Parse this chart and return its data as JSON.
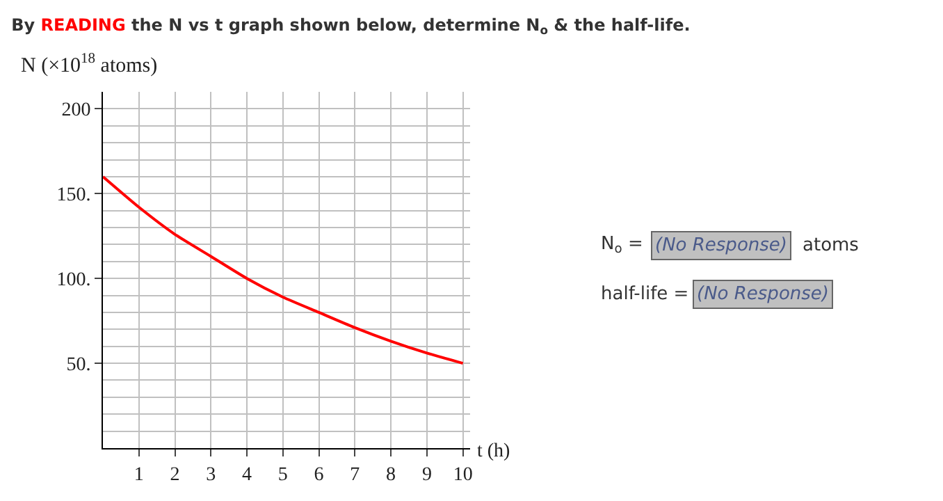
{
  "chart_data": {
    "type": "line",
    "title": "By READING the N vs t graph shown below, determine N$_{o}$ & the half-life.",
    "ylabel": "N (×10$^{18}$ atoms)",
    "xlabel": "t (h)",
    "x": [
      0,
      1,
      2,
      3,
      4,
      5,
      6,
      7,
      8,
      9,
      10
    ],
    "series": [
      {
        "color": "#ff0000",
        "values": [
          160,
          142,
          126,
          113,
          100,
          89,
          80,
          71,
          63,
          56,
          50
        ]
      }
    ],
    "xlim": [
      0,
      10.2
    ],
    "ylim": [
      0,
      210
    ],
    "xticks": [
      1,
      2,
      3,
      4,
      5,
      6,
      7,
      8,
      9,
      10
    ],
    "yticks": [
      {
        "value": 10,
        "label": null
      },
      {
        "value": 20,
        "label": null
      },
      {
        "value": 30,
        "label": null
      },
      {
        "value": 40,
        "label": null
      },
      {
        "value": 50,
        "label": "50."
      },
      {
        "value": 60,
        "label": null
      },
      {
        "value": 70,
        "label": null
      },
      {
        "value": 80,
        "label": null
      },
      {
        "value": 90,
        "label": null
      },
      {
        "value": 100,
        "label": "100."
      },
      {
        "value": 110,
        "label": null
      },
      {
        "value": 120,
        "label": null
      },
      {
        "value": 130,
        "label": null
      },
      {
        "value": 140,
        "label": null
      },
      {
        "value": 150,
        "label": "150."
      },
      {
        "value": 160,
        "label": null
      },
      {
        "value": 170,
        "label": null
      },
      {
        "value": 180,
        "label": null
      },
      {
        "value": 190,
        "label": null
      },
      {
        "value": 200,
        "label": "200"
      }
    ],
    "grid": true,
    "marker": "none",
    "line_style": "solid",
    "annotations": [
      "N$_{o}$ =",
      "(No Response)",
      "atoms",
      "half-life =",
      "(No Response)"
    ]
  }
}
